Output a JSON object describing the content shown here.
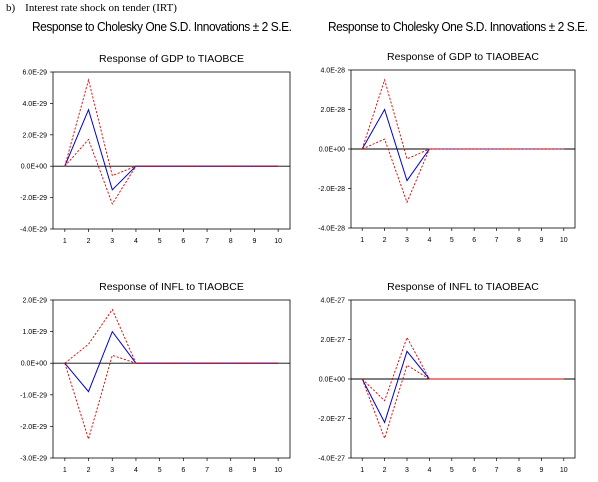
{
  "caption": {
    "letter": "b)",
    "text": "Interest rate shock on tender (IRT)"
  },
  "headings": [
    "Response to Cholesky One S.D. Innovations ± 2 S.E.",
    "Response to Cholesky One S.D. Innovations ± 2 S.E."
  ],
  "colors": {
    "response": "#0000cc",
    "bands": "#dd0000",
    "zero_line": "#000000",
    "frame": "#000000"
  },
  "chart_data": [
    {
      "type": "line",
      "title": "Response of GDP to TIAOBCE",
      "x": [
        1,
        2,
        3,
        4,
        5,
        6,
        7,
        8,
        9,
        10
      ],
      "xticks": [
        "1",
        "2",
        "3",
        "4",
        "5",
        "6",
        "7",
        "8",
        "9",
        "10"
      ],
      "yticks": [
        "6.0E-29",
        "4.0E-29",
        "2.0E-29",
        "0.0E+00",
        "-2.0E-29",
        "-4.0E-29"
      ],
      "ytick_values": [
        6e-29,
        4e-29,
        2e-29,
        0,
        -2e-29,
        -4e-29
      ],
      "ylim": [
        -4e-29,
        6e-29
      ],
      "series": [
        {
          "role": "response",
          "values": [
            0,
            3.6e-29,
            -1.5e-29,
            0,
            0,
            0,
            0,
            0,
            0,
            0
          ]
        },
        {
          "role": "upper",
          "values": [
            0,
            5.5e-29,
            -6e-30,
            0,
            0,
            0,
            0,
            0,
            0,
            0
          ]
        },
        {
          "role": "lower",
          "values": [
            0,
            1.7e-29,
            -2.4e-29,
            0,
            0,
            0,
            0,
            0,
            0,
            0
          ]
        }
      ]
    },
    {
      "type": "line",
      "title": "Response of GDP to TIAOBEAC",
      "x": [
        1,
        2,
        3,
        4,
        5,
        6,
        7,
        8,
        9,
        10
      ],
      "xticks": [
        "1",
        "2",
        "3",
        "4",
        "5",
        "6",
        "7",
        "8",
        "9",
        "10"
      ],
      "yticks": [
        "4.0E-28",
        "2.0E-28",
        "0.0E+00",
        "-2.0E-28",
        "-4.0E-28"
      ],
      "ytick_values": [
        4e-28,
        2e-28,
        0,
        -2e-28,
        -4e-28
      ],
      "ylim": [
        -4e-28,
        4e-28
      ],
      "series": [
        {
          "role": "response",
          "values": [
            0,
            2e-28,
            -1.6e-28,
            0,
            0,
            0,
            0,
            0,
            0,
            0
          ]
        },
        {
          "role": "upper",
          "values": [
            0,
            3.5e-28,
            -5e-29,
            0,
            0,
            0,
            0,
            0,
            0,
            0
          ]
        },
        {
          "role": "lower",
          "values": [
            0,
            5e-29,
            -2.7e-28,
            0,
            0,
            0,
            0,
            0,
            0,
            0
          ]
        }
      ]
    },
    {
      "type": "line",
      "title": "Response of INFL to TIAOBCE",
      "x": [
        1,
        2,
        3,
        4,
        5,
        6,
        7,
        8,
        9,
        10
      ],
      "xticks": [
        "1",
        "2",
        "3",
        "4",
        "5",
        "6",
        "7",
        "8",
        "9",
        "10"
      ],
      "yticks": [
        "2.0E-29",
        "1.0E-29",
        "0.0E+00",
        "-1.0E-29",
        "-2.0E-29",
        "-3.0E-29"
      ],
      "ytick_values": [
        2e-29,
        1e-29,
        0,
        -1e-29,
        -2e-29,
        -3e-29
      ],
      "ylim": [
        -3e-29,
        2e-29
      ],
      "series": [
        {
          "role": "response",
          "values": [
            0,
            -9e-30,
            1e-29,
            0,
            0,
            0,
            0,
            0,
            0,
            0
          ]
        },
        {
          "role": "upper",
          "values": [
            0,
            6e-30,
            1.7e-29,
            0,
            0,
            0,
            0,
            0,
            0,
            0
          ]
        },
        {
          "role": "lower",
          "values": [
            0,
            -2.4e-29,
            2.5e-30,
            0,
            0,
            0,
            0,
            0,
            0,
            0
          ]
        }
      ]
    },
    {
      "type": "line",
      "title": "Response of INFL to TIAOBEAC",
      "x": [
        1,
        2,
        3,
        4,
        5,
        6,
        7,
        8,
        9,
        10
      ],
      "xticks": [
        "1",
        "2",
        "3",
        "4",
        "5",
        "6",
        "7",
        "8",
        "9",
        "10"
      ],
      "yticks": [
        "4.0E-27",
        "2.0E-27",
        "0.0E+00",
        "-2.0E-27",
        "-4.0E-27"
      ],
      "ytick_values": [
        4e-27,
        2e-27,
        0,
        -2e-27,
        -4e-27
      ],
      "ylim": [
        -4e-27,
        4e-27
      ],
      "series": [
        {
          "role": "response",
          "values": [
            0,
            -2.2e-27,
            1.4e-27,
            0,
            0,
            0,
            0,
            0,
            0,
            0
          ]
        },
        {
          "role": "upper",
          "values": [
            0,
            -1.1e-27,
            2.1e-27,
            0,
            0,
            0,
            0,
            0,
            0,
            0
          ]
        },
        {
          "role": "lower",
          "values": [
            0,
            -3e-27,
            7e-28,
            0,
            0,
            0,
            0,
            0,
            0,
            0
          ]
        }
      ]
    }
  ]
}
